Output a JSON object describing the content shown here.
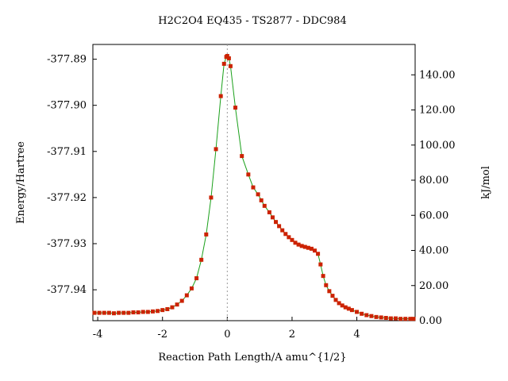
{
  "chart_data": {
    "type": "line",
    "title": "H2C2O4    EQ435 - TS2877 - DDC984",
    "xlabel": "Reaction Path Length/A amu^{1/2}",
    "ylabel_left": "Energy/Hartree",
    "ylabel_right": "kJ/mol",
    "xlim": [
      -4.15,
      5.8
    ],
    "ylim_left": [
      -377.9467,
      -377.8868
    ],
    "ylim_right": [
      0.0,
      157.3
    ],
    "x_ticks": [
      -4,
      -2,
      0,
      2,
      4
    ],
    "x_tick_labels": [
      "-4",
      "-2",
      "0",
      "2",
      "4"
    ],
    "y_left_ticks": [
      -377.89,
      -377.9,
      -377.91,
      -377.92,
      -377.93,
      -377.94
    ],
    "y_left_tick_labels": [
      "-377.89",
      "-377.90",
      "-377.91",
      "-377.92",
      "-377.93",
      "-377.94"
    ],
    "y_right_ticks": [
      0,
      20,
      40,
      60,
      80,
      100,
      120,
      140
    ],
    "y_right_tick_labels": [
      "0.00",
      "20.00",
      "40.00",
      "60.00",
      "80.00",
      "100.00",
      "120.00",
      "140.00"
    ],
    "ts_marker_x": 0.0,
    "grid": false,
    "colors": {
      "line": "#1aa01a",
      "points": "#cc2200",
      "ts_marker": "#999999"
    },
    "series": [
      {
        "x": [
          -4.1,
          -3.95,
          -3.8,
          -3.65,
          -3.5,
          -3.35,
          -3.2,
          -3.05,
          -2.9,
          -2.75,
          -2.6,
          -2.45,
          -2.3,
          -2.15,
          -2.0,
          -1.85,
          -1.7,
          -1.55,
          -1.4,
          -1.25,
          -1.1,
          -0.95,
          -0.8,
          -0.65,
          -0.5,
          -0.35,
          -0.2,
          -0.1,
          -0.03,
          0.0,
          0.05,
          0.1,
          0.25,
          0.45,
          0.65,
          0.8,
          0.95,
          1.05,
          1.15,
          1.3,
          1.4,
          1.5,
          1.6,
          1.7,
          1.8,
          1.9,
          2.0,
          2.1,
          2.2,
          2.3,
          2.4,
          2.5,
          2.6,
          2.7,
          2.8,
          2.88,
          2.96,
          3.05,
          3.15,
          3.25,
          3.35,
          3.45,
          3.55,
          3.65,
          3.75,
          3.85,
          4.0,
          4.15,
          4.3,
          4.45,
          4.6,
          4.75,
          4.9,
          5.05,
          5.2,
          5.35,
          5.5,
          5.65,
          5.75
        ],
        "y": [
          -377.945,
          -377.945,
          -377.945,
          -377.945,
          -377.9451,
          -377.945,
          -377.945,
          -377.945,
          -377.9449,
          -377.9449,
          -377.9448,
          -377.9448,
          -377.9447,
          -377.9446,
          -377.9444,
          -377.9442,
          -377.9438,
          -377.9432,
          -377.9424,
          -377.9412,
          -377.9397,
          -377.9375,
          -377.9335,
          -377.928,
          -377.92,
          -377.9095,
          -377.898,
          -377.891,
          -377.8895,
          -377.8893,
          -377.8898,
          -377.8915,
          -377.9005,
          -377.911,
          -377.915,
          -377.9178,
          -377.9193,
          -377.9206,
          -377.9218,
          -377.9232,
          -377.9243,
          -377.9253,
          -377.9262,
          -377.9271,
          -377.9279,
          -377.9286,
          -377.9292,
          -377.9298,
          -377.9302,
          -377.9305,
          -377.9307,
          -377.9309,
          -377.9311,
          -377.9315,
          -377.9322,
          -377.9345,
          -377.937,
          -377.939,
          -377.9403,
          -377.9413,
          -377.9422,
          -377.9429,
          -377.9434,
          -377.9438,
          -377.9441,
          -377.9444,
          -377.9448,
          -377.9452,
          -377.9455,
          -377.9457,
          -377.9459,
          -377.946,
          -377.9461,
          -377.9462,
          -377.9462,
          -377.9463,
          -377.9463,
          -377.9463,
          -377.9463
        ]
      }
    ]
  }
}
